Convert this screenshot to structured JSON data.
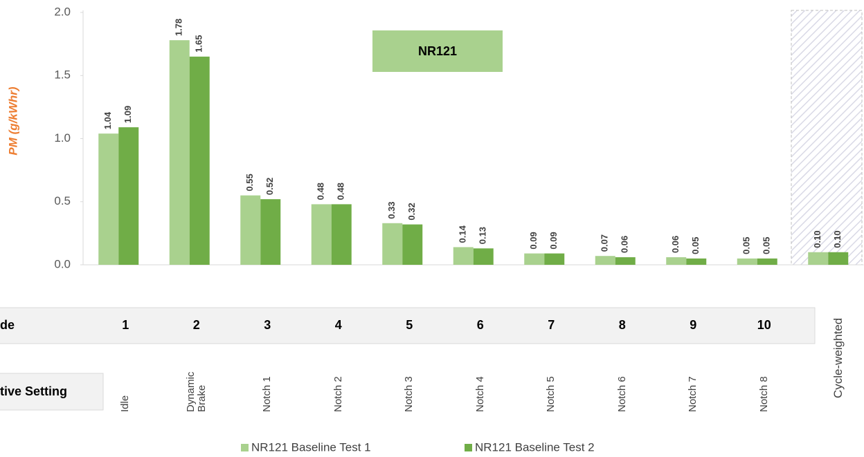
{
  "chart_data": {
    "type": "bar",
    "annotation": "NR121",
    "y_label": "PM (g/kWhr)",
    "categories": [
      "Idle",
      "Dynamic Brake",
      "Notch 1",
      "Notch 2",
      "Notch 3",
      "Notch 4",
      "Notch 5",
      "Notch 6",
      "Notch 7",
      "Notch 8",
      "Cycle-weighted"
    ],
    "modes": [
      1,
      2,
      3,
      4,
      5,
      6,
      7,
      8,
      9,
      10,
      null
    ],
    "row_labels": [
      "de",
      "tive Setting"
    ],
    "series": [
      {
        "name": "NR121 Baseline Test 1",
        "color": "#a9d18e",
        "values": [
          1.04,
          1.78,
          0.55,
          0.48,
          0.33,
          0.14,
          0.09,
          0.07,
          0.06,
          0.05,
          0.1
        ],
        "value_labels": [
          "1.04",
          "1.78",
          "0.55",
          "0.48",
          "0.33",
          "0.14",
          "0.09",
          "0.07",
          "0.06",
          "0.05",
          "0.10"
        ]
      },
      {
        "name": "NR121 Baseline Test 2",
        "color": "#70ad47",
        "values": [
          1.09,
          1.65,
          0.52,
          0.48,
          0.32,
          0.13,
          0.09,
          0.06,
          0.05,
          0.05,
          0.1
        ],
        "value_labels": [
          "1.09",
          "1.65",
          "0.52",
          "0.48",
          "0.32",
          "0.13",
          "0.09",
          "0.06",
          "0.05",
          "0.05",
          "0.10"
        ]
      }
    ],
    "ylim": [
      0,
      2
    ],
    "yticks": [
      {
        "value": 0,
        "label": "0.0"
      },
      0.5,
      {
        "value": 1,
        "label": "1.0"
      },
      1.5,
      {
        "value": 2,
        "label": "2.0"
      }
    ],
    "grid": false,
    "legend": "bottom"
  }
}
